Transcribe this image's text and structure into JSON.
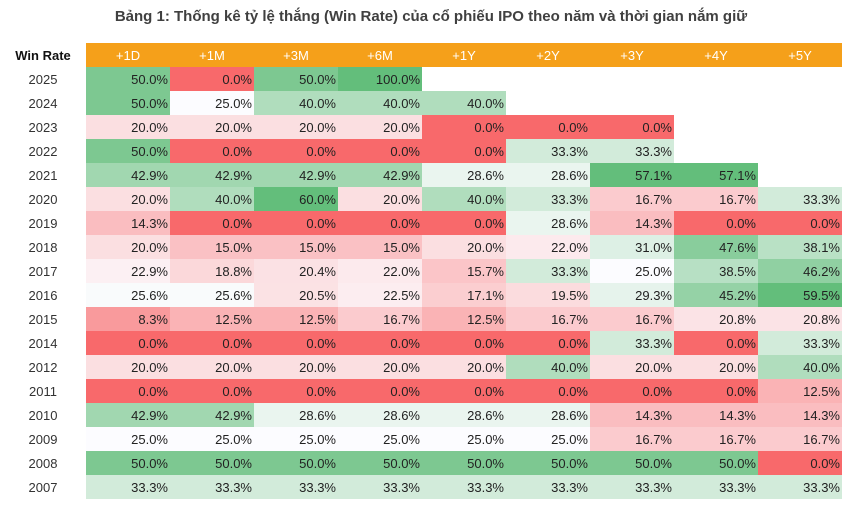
{
  "title": "Bảng 1: Thống kê tỷ lệ thắng (Win Rate) của cổ phiếu IPO theo năm và thời gian nắm giữ",
  "chart_data": {
    "type": "heatmap",
    "title": "Bảng 1: Thống kê tỷ lệ thắng (Win Rate) của cổ phiếu IPO theo năm và thời gian nắm giữ",
    "row_header_label": "Win Rate",
    "columns": [
      "+1D",
      "+1M",
      "+3M",
      "+6M",
      "+1Y",
      "+2Y",
      "+3Y",
      "+4Y",
      "+5Y"
    ],
    "header_color": "#f5a01a",
    "color_scale": {
      "low": "#f8696b",
      "mid": "#fcfcff",
      "high": "#63be7b"
    },
    "rows": [
      {
        "year": "2025",
        "values": [
          "50.0%",
          "0.0%",
          "50.0%",
          "100.0%",
          "",
          "",
          "",
          "",
          ""
        ]
      },
      {
        "year": "2024",
        "values": [
          "50.0%",
          "25.0%",
          "40.0%",
          "40.0%",
          "40.0%",
          "",
          "",
          "",
          ""
        ]
      },
      {
        "year": "2023",
        "values": [
          "20.0%",
          "20.0%",
          "20.0%",
          "20.0%",
          "0.0%",
          "0.0%",
          "0.0%",
          "",
          ""
        ]
      },
      {
        "year": "2022",
        "values": [
          "50.0%",
          "0.0%",
          "0.0%",
          "0.0%",
          "0.0%",
          "33.3%",
          "33.3%",
          "",
          ""
        ]
      },
      {
        "year": "2021",
        "values": [
          "42.9%",
          "42.9%",
          "42.9%",
          "42.9%",
          "28.6%",
          "28.6%",
          "57.1%",
          "57.1%",
          ""
        ]
      },
      {
        "year": "2020",
        "values": [
          "20.0%",
          "40.0%",
          "60.0%",
          "20.0%",
          "40.0%",
          "33.3%",
          "16.7%",
          "16.7%",
          "33.3%"
        ]
      },
      {
        "year": "2019",
        "values": [
          "14.3%",
          "0.0%",
          "0.0%",
          "0.0%",
          "0.0%",
          "28.6%",
          "14.3%",
          "0.0%",
          "0.0%"
        ]
      },
      {
        "year": "2018",
        "values": [
          "20.0%",
          "15.0%",
          "15.0%",
          "15.0%",
          "20.0%",
          "22.0%",
          "31.0%",
          "47.6%",
          "38.1%"
        ]
      },
      {
        "year": "2017",
        "values": [
          "22.9%",
          "18.8%",
          "20.4%",
          "22.0%",
          "15.7%",
          "33.3%",
          "25.0%",
          "38.5%",
          "46.2%"
        ]
      },
      {
        "year": "2016",
        "values": [
          "25.6%",
          "25.6%",
          "20.5%",
          "22.5%",
          "17.1%",
          "19.5%",
          "29.3%",
          "45.2%",
          "59.5%"
        ]
      },
      {
        "year": "2015",
        "values": [
          "8.3%",
          "12.5%",
          "12.5%",
          "16.7%",
          "12.5%",
          "16.7%",
          "16.7%",
          "20.8%",
          "20.8%"
        ]
      },
      {
        "year": "2014",
        "values": [
          "0.0%",
          "0.0%",
          "0.0%",
          "0.0%",
          "0.0%",
          "0.0%",
          "33.3%",
          "0.0%",
          "33.3%"
        ]
      },
      {
        "year": "2012",
        "values": [
          "20.0%",
          "20.0%",
          "20.0%",
          "20.0%",
          "20.0%",
          "40.0%",
          "20.0%",
          "20.0%",
          "40.0%"
        ]
      },
      {
        "year": "2011",
        "values": [
          "0.0%",
          "0.0%",
          "0.0%",
          "0.0%",
          "0.0%",
          "0.0%",
          "0.0%",
          "0.0%",
          "12.5%"
        ]
      },
      {
        "year": "2010",
        "values": [
          "42.9%",
          "42.9%",
          "28.6%",
          "28.6%",
          "28.6%",
          "28.6%",
          "14.3%",
          "14.3%",
          "14.3%"
        ]
      },
      {
        "year": "2009",
        "values": [
          "25.0%",
          "25.0%",
          "25.0%",
          "25.0%",
          "25.0%",
          "25.0%",
          "16.7%",
          "16.7%",
          "16.7%"
        ]
      },
      {
        "year": "2008",
        "values": [
          "50.0%",
          "50.0%",
          "50.0%",
          "50.0%",
          "50.0%",
          "50.0%",
          "50.0%",
          "50.0%",
          "0.0%"
        ]
      },
      {
        "year": "2007",
        "values": [
          "33.3%",
          "33.3%",
          "33.3%",
          "33.3%",
          "33.3%",
          "33.3%",
          "33.3%",
          "33.3%",
          "33.3%"
        ]
      }
    ]
  }
}
